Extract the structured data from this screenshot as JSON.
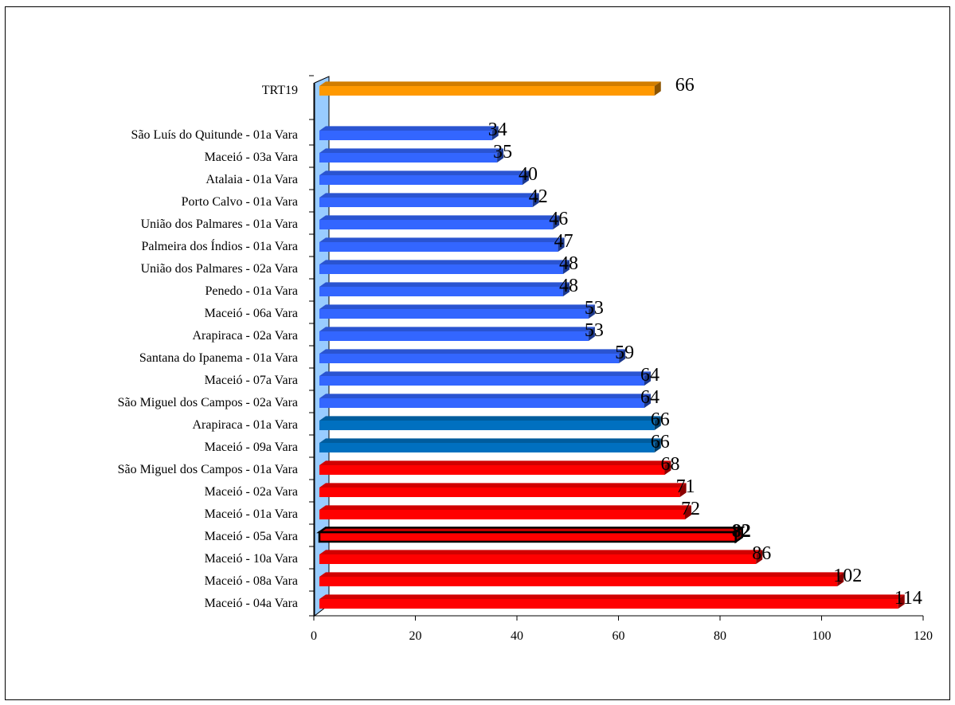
{
  "chart_data": {
    "type": "bar",
    "orientation": "horizontal",
    "title": "",
    "xlabel": "",
    "ylabel": "",
    "xlim": [
      0,
      120
    ],
    "x_ticks": [
      "0",
      "20",
      "40",
      "60",
      "80",
      "100",
      "120"
    ],
    "grid": false,
    "legend": "none",
    "categories": [
      "TRT19",
      "São Luís do Quitunde  - 01a Vara",
      "Maceió  - 03a Vara",
      "Atalaia  - 01a Vara",
      "Porto Calvo  - 01a Vara",
      "União dos Palmares  - 01a Vara",
      "Palmeira dos Índios  - 01a Vara",
      "União dos Palmares  - 02a Vara",
      "Penedo  - 01a Vara",
      "Maceió  - 06a Vara",
      "Arapiraca  - 02a Vara",
      "Santana do Ipanema  - 01a Vara",
      "Maceió  - 07a Vara",
      "São Miguel dos Campos  - 02a Vara",
      "Arapiraca  - 01a Vara",
      "Maceió  - 09a Vara",
      "São Miguel dos Campos  - 01a Vara",
      "Maceió  - 02a Vara",
      "Maceió  - 01a Vara",
      "Maceió  - 05a Vara",
      "Maceió  - 10a Vara",
      "Maceió  - 08a Vara",
      "Maceió  - 04a Vara"
    ],
    "values": [
      66,
      34,
      35,
      40,
      42,
      46,
      47,
      48,
      48,
      53,
      53,
      59,
      64,
      64,
      66,
      66,
      68,
      71,
      72,
      82,
      86,
      102,
      114
    ],
    "value_labels": [
      "66",
      "34",
      "35",
      "40",
      "42",
      "46",
      "47",
      "48",
      "48",
      "53",
      "53",
      "59",
      "64",
      "64",
      "66",
      "66",
      "68",
      "71",
      "72",
      "82",
      "86",
      "102",
      "114"
    ],
    "highlighted_category": "Maceió  - 05a Vara",
    "bar_colors": [
      "#ff9900",
      "#3366ff",
      "#3366ff",
      "#3366ff",
      "#3366ff",
      "#3366ff",
      "#3366ff",
      "#3366ff",
      "#3366ff",
      "#3366ff",
      "#3366ff",
      "#3366ff",
      "#3366ff",
      "#3366ff",
      "#0070c0",
      "#0070c0",
      "#ff0000",
      "#ff0000",
      "#ff0000",
      "#ff0000",
      "#ff0000",
      "#ff0000",
      "#ff0000"
    ],
    "wall_color": "#99ccff"
  }
}
